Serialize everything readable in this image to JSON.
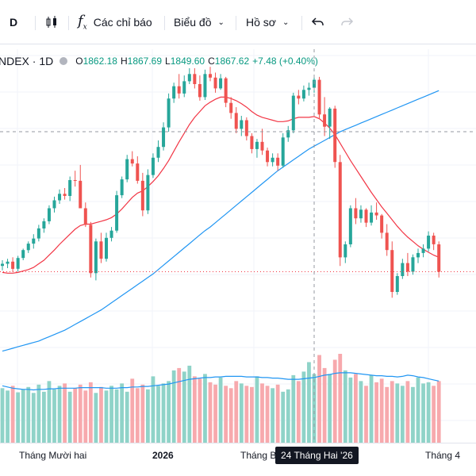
{
  "toolbar": {
    "interval_label": "D",
    "indicators_label": "Các chỉ báo",
    "chart_type_label": "Biểu đồ",
    "profile_label": "Hồ sơ"
  },
  "legend": {
    "symbol": "NDEX · 1D",
    "o_key": "O",
    "o_val": "1862.18",
    "h_key": "H",
    "h_val": "1867.69",
    "l_key": "L",
    "l_val": "1849.60",
    "c_key": "C",
    "c_val": "1867.62",
    "change": "+7.48 (+0.40%)"
  },
  "xaxis": {
    "labels": [
      "Tháng Mười hai",
      "2026",
      "Tháng Ba",
      "Tháng 4"
    ],
    "crosshair_label": "24 Tháng Hai '26"
  },
  "colors": {
    "up": "#26a69a",
    "down": "#ef5350",
    "up_volume": "#8fd3c8",
    "down_volume": "#f7a9ad",
    "ma_short": "#f23645",
    "ma_long": "#2196f3"
  },
  "chart_data": {
    "type": "candlestick",
    "candles": [
      [
        1606,
        1614,
        1600,
        1609
      ],
      [
        1609,
        1616,
        1603,
        1612
      ],
      [
        1612,
        1618,
        1598,
        1602
      ],
      [
        1602,
        1620,
        1598,
        1617
      ],
      [
        1617,
        1630,
        1614,
        1628
      ],
      [
        1628,
        1640,
        1624,
        1637
      ],
      [
        1637,
        1650,
        1630,
        1644
      ],
      [
        1644,
        1663,
        1640,
        1658
      ],
      [
        1658,
        1672,
        1652,
        1668
      ],
      [
        1668,
        1690,
        1664,
        1686
      ],
      [
        1686,
        1702,
        1680,
        1697
      ],
      [
        1697,
        1712,
        1692,
        1706
      ],
      [
        1706,
        1714,
        1698,
        1703
      ],
      [
        1703,
        1730,
        1696,
        1725
      ],
      [
        1725,
        1738,
        1716,
        1724
      ],
      [
        1724,
        1746,
        1688,
        1686
      ],
      [
        1686,
        1694,
        1660,
        1663
      ],
      [
        1663,
        1667,
        1590,
        1596
      ],
      [
        1596,
        1644,
        1586,
        1640
      ],
      [
        1640,
        1652,
        1610,
        1616
      ],
      [
        1616,
        1652,
        1612,
        1645
      ],
      [
        1645,
        1660,
        1640,
        1655
      ],
      [
        1655,
        1710,
        1652,
        1704
      ],
      [
        1704,
        1730,
        1700,
        1726
      ],
      [
        1726,
        1760,
        1722,
        1754
      ],
      [
        1754,
        1765,
        1744,
        1748
      ],
      [
        1748,
        1758,
        1720,
        1724
      ],
      [
        1724,
        1735,
        1675,
        1683
      ],
      [
        1683,
        1740,
        1678,
        1732
      ],
      [
        1732,
        1762,
        1728,
        1756
      ],
      [
        1756,
        1780,
        1750,
        1771
      ],
      [
        1771,
        1805,
        1766,
        1798
      ],
      [
        1798,
        1845,
        1792,
        1838
      ],
      [
        1838,
        1860,
        1832,
        1855
      ],
      [
        1855,
        1872,
        1838,
        1845
      ],
      [
        1845,
        1870,
        1840,
        1862
      ],
      [
        1862,
        1880,
        1858,
        1872
      ],
      [
        1872,
        1880,
        1852,
        1858
      ],
      [
        1858,
        1870,
        1835,
        1840
      ],
      [
        1840,
        1878,
        1836,
        1872
      ],
      [
        1872,
        1882,
        1862,
        1867
      ],
      [
        1867,
        1874,
        1846,
        1852
      ],
      [
        1852,
        1872,
        1850,
        1866
      ],
      [
        1866,
        1868,
        1826,
        1832
      ],
      [
        1832,
        1840,
        1810,
        1818
      ],
      [
        1818,
        1826,
        1790,
        1796
      ],
      [
        1796,
        1814,
        1786,
        1808
      ],
      [
        1808,
        1812,
        1780,
        1786
      ],
      [
        1786,
        1790,
        1762,
        1768
      ],
      [
        1768,
        1782,
        1756,
        1778
      ],
      [
        1778,
        1796,
        1760,
        1766
      ],
      [
        1766,
        1770,
        1744,
        1750
      ],
      [
        1750,
        1762,
        1744,
        1756
      ],
      [
        1756,
        1762,
        1738,
        1745
      ],
      [
        1745,
        1790,
        1742,
        1784
      ],
      [
        1784,
        1800,
        1778,
        1794
      ],
      [
        1794,
        1846,
        1790,
        1842
      ],
      [
        1842,
        1850,
        1830,
        1838
      ],
      [
        1838,
        1856,
        1834,
        1850
      ],
      [
        1850,
        1860,
        1842,
        1853
      ],
      [
        1853,
        1870,
        1846,
        1864
      ],
      [
        1864,
        1868,
        1810,
        1816
      ],
      [
        1816,
        1840,
        1786,
        1799
      ],
      [
        1799,
        1826,
        1782,
        1824
      ],
      [
        1824,
        1828,
        1742,
        1750
      ],
      [
        1750,
        1760,
        1606,
        1618
      ],
      [
        1618,
        1640,
        1610,
        1636
      ],
      [
        1636,
        1690,
        1632,
        1686
      ],
      [
        1686,
        1700,
        1664,
        1672
      ],
      [
        1672,
        1690,
        1666,
        1684
      ],
      [
        1684,
        1686,
        1660,
        1666
      ],
      [
        1666,
        1690,
        1662,
        1680
      ],
      [
        1680,
        1694,
        1670,
        1676
      ],
      [
        1676,
        1678,
        1644,
        1652
      ],
      [
        1652,
        1664,
        1620,
        1628
      ],
      [
        1628,
        1640,
        1562,
        1570
      ],
      [
        1570,
        1596,
        1566,
        1592
      ],
      [
        1592,
        1616,
        1588,
        1610
      ],
      [
        1610,
        1624,
        1592,
        1598
      ],
      [
        1598,
        1622,
        1594,
        1618
      ],
      [
        1618,
        1630,
        1610,
        1624
      ],
      [
        1624,
        1636,
        1618,
        1630
      ],
      [
        1630,
        1654,
        1626,
        1648
      ],
      [
        1648,
        1652,
        1628,
        1636
      ],
      [
        1636,
        1640,
        1590,
        1598
      ]
    ],
    "ma_short": [
      1597,
      1596,
      1596,
      1597,
      1599,
      1601,
      1604,
      1609,
      1614,
      1621,
      1628,
      1636,
      1643,
      1650,
      1657,
      1662,
      1664,
      1664,
      1666,
      1668,
      1670,
      1673,
      1678,
      1685,
      1693,
      1701,
      1707,
      1710,
      1716,
      1723,
      1731,
      1741,
      1752,
      1765,
      1778,
      1790,
      1802,
      1812,
      1820,
      1828,
      1833,
      1837,
      1840,
      1840,
      1838,
      1835,
      1831,
      1826,
      1820,
      1815,
      1812,
      1810,
      1808,
      1806,
      1806,
      1807,
      1810,
      1812,
      1812,
      1812,
      1813,
      1810,
      1804,
      1797,
      1788,
      1776,
      1764,
      1752,
      1741,
      1730,
      1719,
      1708,
      1698,
      1688,
      1679,
      1670,
      1661,
      1653,
      1646,
      1640,
      1634,
      1629,
      1625,
      1621,
      1618
    ],
    "ma_long": [
      1488,
      1490,
      1492,
      1494,
      1496,
      1498,
      1500,
      1502,
      1505,
      1508,
      1511,
      1514,
      1517,
      1521,
      1525,
      1529,
      1533,
      1537,
      1541,
      1545,
      1550,
      1555,
      1560,
      1565,
      1570,
      1575,
      1580,
      1585,
      1590,
      1595,
      1601,
      1607,
      1613,
      1619,
      1625,
      1631,
      1637,
      1643,
      1649,
      1655,
      1660,
      1666,
      1672,
      1678,
      1684,
      1690,
      1696,
      1702,
      1708,
      1714,
      1720,
      1726,
      1732,
      1738,
      1743,
      1748,
      1753,
      1758,
      1763,
      1768,
      1772,
      1776,
      1780,
      1784,
      1788,
      1792,
      1795,
      1798,
      1801,
      1804,
      1807,
      1810,
      1813,
      1816,
      1819,
      1822,
      1825,
      1828,
      1831,
      1834,
      1837,
      1840,
      1843,
      1846,
      1849
    ],
    "volumes": [
      92,
      88,
      96,
      85,
      90,
      94,
      84,
      98,
      86,
      104,
      90,
      96,
      100,
      86,
      92,
      98,
      88,
      102,
      84,
      94,
      88,
      96,
      90,
      100,
      86,
      108,
      92,
      98,
      90,
      112,
      96,
      100,
      104,
      122,
      126,
      120,
      130,
      112,
      108,
      116,
      102,
      98,
      110,
      96,
      92,
      104,
      100,
      96,
      94,
      112,
      100,
      96,
      92,
      98,
      86,
      90,
      114,
      104,
      120,
      136,
      116,
      148,
      126,
      116,
      140,
      150,
      122,
      110,
      116,
      104,
      96,
      114,
      102,
      108,
      94,
      104,
      100,
      96,
      104,
      94,
      110,
      100,
      102,
      96,
      104
    ],
    "volume_ma": [
      96,
      94,
      92,
      91,
      90,
      90,
      89,
      90,
      90,
      91,
      91,
      92,
      92,
      92,
      92,
      93,
      93,
      93,
      93,
      93,
      92,
      92,
      92,
      93,
      93,
      94,
      94,
      95,
      95,
      96,
      97,
      98,
      99,
      101,
      103,
      105,
      107,
      108,
      109,
      110,
      110,
      111,
      111,
      112,
      112,
      112,
      112,
      111,
      111,
      111,
      110,
      110,
      109,
      109,
      108,
      107,
      107,
      107,
      108,
      109,
      110,
      112,
      114,
      115,
      117,
      118,
      118,
      118,
      117,
      116,
      115,
      114,
      113,
      113,
      112,
      112,
      111,
      112,
      114,
      113,
      111,
      110,
      108,
      106,
      104
    ],
    "price_range": [
      1570,
      1880
    ],
    "x_labels": [
      "Tháng Mười hai",
      "2026",
      "Tháng Ba",
      "Tháng 4"
    ],
    "grid": true
  }
}
